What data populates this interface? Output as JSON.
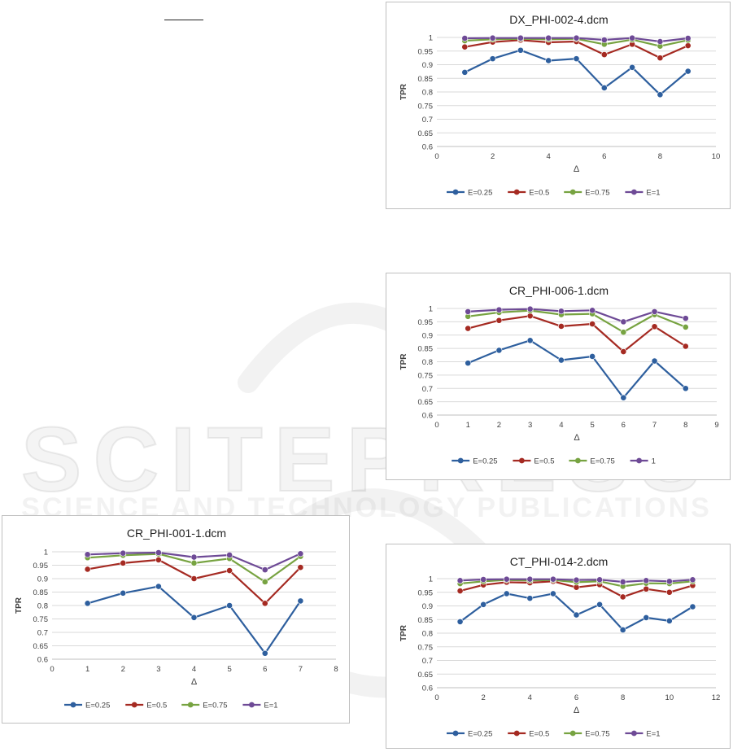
{
  "watermark": {
    "main": "SCITEPRESS",
    "sub": "SCIENCE AND TECHNOLOGY PUBLICATIONS"
  },
  "chart_data": [
    {
      "type": "line",
      "title": "DX_PHI-002-4.dcm",
      "xlabel": "Δ",
      "ylabel": "TPR",
      "xlim": [
        0,
        10
      ],
      "ylim": [
        0.6,
        1.0
      ],
      "xticks": [
        0,
        2,
        4,
        6,
        8,
        10
      ],
      "yticks": [
        0.6,
        0.65,
        0.7,
        0.75,
        0.8,
        0.85,
        0.9,
        0.95,
        1
      ],
      "x": [
        1,
        2,
        3,
        4,
        5,
        6,
        7,
        8,
        9
      ],
      "series": [
        {
          "name": "E=0.25",
          "color": "#2e5f9e",
          "values": [
            0.872,
            0.922,
            0.953,
            0.915,
            0.922,
            0.815,
            0.89,
            0.79,
            0.876
          ]
        },
        {
          "name": "E=0.5",
          "color": "#a52a22",
          "values": [
            0.965,
            0.983,
            0.99,
            0.982,
            0.985,
            0.937,
            0.975,
            0.925,
            0.97
          ]
        },
        {
          "name": "E=0.75",
          "color": "#77a341",
          "values": [
            0.988,
            0.993,
            0.995,
            0.993,
            0.995,
            0.975,
            0.992,
            0.968,
            0.99
          ]
        },
        {
          "name": "E=1",
          "color": "#6e4a96",
          "values": [
            0.997,
            0.998,
            0.998,
            0.998,
            0.998,
            0.991,
            0.998,
            0.985,
            0.997
          ]
        }
      ],
      "grid": true,
      "legend": "bottom"
    },
    {
      "type": "line",
      "title": "CR_PHI-006-1.dcm",
      "xlabel": "Δ",
      "ylabel": "TPR",
      "xlim": [
        0,
        9
      ],
      "ylim": [
        0.6,
        1.0
      ],
      "xticks": [
        0,
        1,
        2,
        3,
        4,
        5,
        6,
        7,
        8,
        9
      ],
      "yticks": [
        0.6,
        0.65,
        0.7,
        0.75,
        0.8,
        0.85,
        0.9,
        0.95,
        1
      ],
      "x": [
        1,
        2,
        3,
        4,
        5,
        6,
        7,
        8
      ],
      "series": [
        {
          "name": "E=0.25",
          "color": "#2e5f9e",
          "values": [
            0.795,
            0.843,
            0.88,
            0.806,
            0.82,
            0.665,
            0.803,
            0.7
          ]
        },
        {
          "name": "E=0.5",
          "color": "#a52a22",
          "values": [
            0.925,
            0.955,
            0.972,
            0.933,
            0.942,
            0.838,
            0.932,
            0.858
          ]
        },
        {
          "name": "E=0.75",
          "color": "#77a341",
          "values": [
            0.97,
            0.985,
            0.992,
            0.977,
            0.98,
            0.911,
            0.977,
            0.93
          ]
        },
        {
          "name": "1",
          "color": "#6e4a96",
          "values": [
            0.988,
            0.995,
            0.998,
            0.99,
            0.993,
            0.95,
            0.988,
            0.963
          ]
        }
      ],
      "grid": true,
      "legend": "bottom"
    },
    {
      "type": "line",
      "title": "CR_PHI-001-1.dcm",
      "xlabel": "Δ",
      "ylabel": "TPR",
      "xlim": [
        0,
        8
      ],
      "ylim": [
        0.6,
        1.0
      ],
      "xticks": [
        0,
        1,
        2,
        3,
        4,
        5,
        6,
        7,
        8
      ],
      "yticks": [
        0.6,
        0.65,
        0.7,
        0.75,
        0.8,
        0.85,
        0.9,
        0.95,
        1
      ],
      "x": [
        1,
        2,
        3,
        4,
        5,
        6,
        7
      ],
      "series": [
        {
          "name": "E=0.25",
          "color": "#2e5f9e",
          "values": [
            0.808,
            0.846,
            0.871,
            0.755,
            0.8,
            0.622,
            0.817
          ]
        },
        {
          "name": "E=0.5",
          "color": "#a52a22",
          "values": [
            0.935,
            0.958,
            0.97,
            0.9,
            0.93,
            0.808,
            0.942
          ]
        },
        {
          "name": "E=0.75",
          "color": "#77a341",
          "values": [
            0.978,
            0.987,
            0.992,
            0.958,
            0.975,
            0.888,
            0.983
          ]
        },
        {
          "name": "E=1",
          "color": "#6e4a96",
          "values": [
            0.99,
            0.995,
            0.997,
            0.98,
            0.988,
            0.933,
            0.993
          ]
        }
      ],
      "grid": true,
      "legend": "bottom"
    },
    {
      "type": "line",
      "title": "CT_PHI-014-2.dcm",
      "xlabel": "Δ",
      "ylabel": "TPR",
      "xlim": [
        0,
        12
      ],
      "ylim": [
        0.6,
        1.0
      ],
      "xticks": [
        0,
        2,
        4,
        6,
        8,
        10,
        12
      ],
      "yticks": [
        0.6,
        0.65,
        0.7,
        0.75,
        0.8,
        0.85,
        0.9,
        0.95,
        1
      ],
      "x": [
        1,
        2,
        3,
        4,
        5,
        6,
        7,
        8,
        9,
        10,
        11
      ],
      "series": [
        {
          "name": "E=0.25",
          "color": "#2e5f9e",
          "values": [
            0.842,
            0.905,
            0.945,
            0.928,
            0.945,
            0.867,
            0.905,
            0.812,
            0.857,
            0.845,
            0.897
          ]
        },
        {
          "name": "E=0.5",
          "color": "#a52a22",
          "values": [
            0.955,
            0.977,
            0.987,
            0.985,
            0.99,
            0.968,
            0.978,
            0.933,
            0.962,
            0.95,
            0.975
          ]
        },
        {
          "name": "E=0.75",
          "color": "#77a341",
          "values": [
            0.982,
            0.99,
            0.995,
            0.993,
            0.995,
            0.987,
            0.99,
            0.972,
            0.983,
            0.982,
            0.99
          ]
        },
        {
          "name": "E=1",
          "color": "#6e4a96",
          "values": [
            0.993,
            0.997,
            0.998,
            0.998,
            0.998,
            0.995,
            0.996,
            0.988,
            0.993,
            0.99,
            0.996
          ]
        }
      ],
      "grid": true,
      "legend": "bottom"
    }
  ]
}
